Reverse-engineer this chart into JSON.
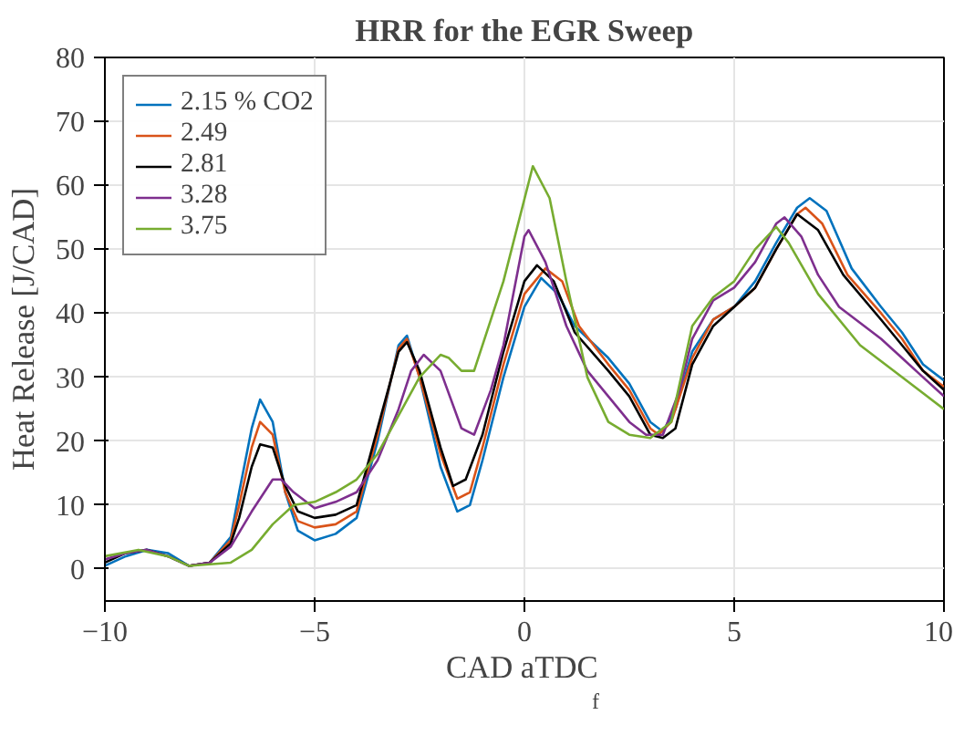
{
  "chart_data": {
    "type": "line",
    "title": "HRR for the EGR Sweep",
    "xlabel": "CAD aTDC$_{f}$",
    "ylabel": "Heat Release [J/CAD]",
    "xlim": [
      -10,
      10
    ],
    "ylim": [
      -5,
      80
    ],
    "xticks": [
      -10,
      -5,
      0,
      5,
      10
    ],
    "yticks": [
      0,
      10,
      20,
      30,
      40,
      50,
      60,
      70,
      80
    ],
    "grid": true,
    "legend": "top left",
    "line_style": "solid",
    "marker": "none",
    "series": [
      {
        "name": "2.15 % CO2",
        "color": "#0072bd",
        "x": [
          -10,
          -9.5,
          -9,
          -8.5,
          -8,
          -7.5,
          -7,
          -6.8,
          -6.5,
          -6.3,
          -6,
          -5.7,
          -5.4,
          -5,
          -4.5,
          -4,
          -3.5,
          -3,
          -2.8,
          -2.5,
          -2,
          -1.6,
          -1.3,
          -1,
          -0.5,
          0,
          0.4,
          0.8,
          1.2,
          2,
          2.5,
          3,
          3.3,
          3.6,
          4,
          4.5,
          5,
          5.5,
          6,
          6.5,
          6.8,
          7.2,
          7.8,
          8.5,
          9,
          9.5,
          10
        ],
        "values": [
          0.5,
          2,
          3,
          2.5,
          0.5,
          1,
          5,
          12,
          22,
          26.5,
          23,
          12,
          6,
          4.5,
          5.5,
          8,
          20,
          35,
          36.5,
          30,
          16,
          9,
          10,
          17,
          30,
          41,
          45.5,
          43,
          38,
          33,
          29,
          23,
          21.5,
          25,
          34,
          39,
          41,
          45,
          51,
          56.5,
          58,
          56,
          47,
          41,
          37,
          32,
          29.5
        ]
      },
      {
        "name": "2.49",
        "color": "#d95319",
        "x": [
          -8,
          -7.5,
          -7,
          -6.8,
          -6.5,
          -6.3,
          -6,
          -5.7,
          -5.4,
          -5,
          -4.5,
          -4,
          -3.5,
          -3,
          -2.8,
          -2.5,
          -2,
          -1.6,
          -1.3,
          -1,
          -0.5,
          0,
          0.5,
          0.9,
          1.3,
          2,
          2.5,
          3,
          3.2,
          3.5,
          4,
          4.5,
          5,
          5.5,
          6,
          6.5,
          6.7,
          7.1,
          7.7,
          8.5,
          9,
          9.5,
          10
        ],
        "values": [
          0.5,
          1,
          4.5,
          10,
          19,
          23,
          21,
          12,
          7.5,
          6.5,
          7,
          9,
          21,
          34.5,
          36,
          30,
          18,
          11,
          12,
          19,
          32,
          43,
          47,
          45,
          38,
          32,
          28,
          22,
          21,
          23,
          33,
          39,
          41,
          44,
          50,
          55.5,
          56.5,
          54,
          46,
          40,
          36,
          31,
          28.5
        ]
      },
      {
        "name": "2.81",
        "color": "#000000",
        "x": [
          -10,
          -9.5,
          -9,
          -8.5,
          -8,
          -7.5,
          -7,
          -6.8,
          -6.5,
          -6.3,
          -6,
          -5.7,
          -5.4,
          -5,
          -4.5,
          -4,
          -3.5,
          -3,
          -2.8,
          -2.5,
          -2,
          -1.7,
          -1.4,
          -1,
          -0.5,
          0,
          0.3,
          0.7,
          1.2,
          2,
          2.5,
          3,
          3.3,
          3.6,
          4,
          4.5,
          5,
          5.5,
          6,
          6.5,
          7,
          7.6,
          8.5,
          9,
          9.5,
          10
        ],
        "values": [
          1,
          2.5,
          3,
          2,
          0.5,
          1,
          4,
          8,
          16,
          19.5,
          19,
          13,
          9,
          8,
          8.5,
          10,
          22,
          34,
          35.5,
          31,
          19,
          13,
          14,
          21,
          34,
          45,
          47.5,
          45,
          37,
          31,
          27,
          21,
          20.5,
          22,
          32,
          38,
          41,
          44,
          50,
          55.5,
          53,
          46,
          39,
          35,
          31,
          28
        ]
      },
      {
        "name": "3.28",
        "color": "#7e2f8e",
        "x": [
          -10,
          -9.5,
          -9,
          -8.5,
          -8,
          -7.5,
          -7,
          -6.5,
          -6,
          -5.8,
          -5.5,
          -5,
          -4.5,
          -4,
          -3.5,
          -3,
          -2.7,
          -2.4,
          -2,
          -1.5,
          -1.2,
          -0.8,
          -0.5,
          0,
          0.1,
          0.5,
          1,
          1.5,
          2,
          2.5,
          2.9,
          3.3,
          3.7,
          4,
          4.5,
          5,
          5.5,
          6,
          6.2,
          6.6,
          7,
          7.5,
          8.5,
          9,
          9.5,
          10
        ],
        "values": [
          1.5,
          2.5,
          3,
          2,
          0.5,
          1,
          3.5,
          9,
          14,
          14,
          12,
          9.5,
          10.5,
          12,
          17,
          25,
          31,
          33.5,
          31,
          22,
          21,
          28,
          35,
          52,
          53,
          48,
          38,
          31,
          27,
          23,
          21,
          21,
          28,
          36,
          42,
          44,
          48,
          54,
          55,
          52,
          46,
          41,
          36,
          33,
          30,
          27
        ]
      },
      {
        "name": "3.75",
        "color": "#77ac30",
        "x": [
          -10,
          -9.2,
          -8.5,
          -8,
          -7,
          -6.5,
          -6,
          -5.5,
          -5,
          -4.5,
          -4,
          -3.5,
          -3,
          -2.5,
          -2,
          -1.8,
          -1.5,
          -1.2,
          -0.5,
          0.2,
          0.6,
          1,
          1.5,
          2,
          2.5,
          3,
          3.5,
          4,
          4.5,
          5,
          5.5,
          6,
          6.3,
          7,
          8,
          9,
          10
        ],
        "values": [
          2,
          3,
          2,
          0.5,
          1,
          3,
          7,
          10,
          10.5,
          12,
          14,
          18,
          24,
          30,
          33.5,
          33,
          31,
          31,
          45,
          63,
          58,
          45,
          30,
          23,
          21,
          20.5,
          23,
          38,
          42.5,
          45,
          50,
          53.5,
          51,
          43,
          35,
          30,
          25
        ]
      }
    ]
  }
}
